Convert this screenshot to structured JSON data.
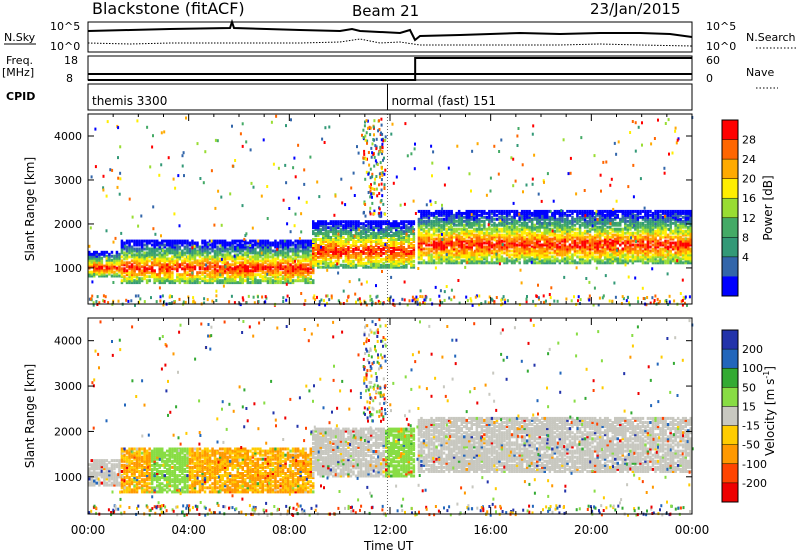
{
  "header": {
    "station": "Blackstone (fitACF)",
    "beam": "Beam 21",
    "date": "23/Jan/2015"
  },
  "params_panel": {
    "nsky_label": "N.Sky",
    "nsearch_label": "N.Search",
    "noise_ticks": [
      "10^5",
      "10^0"
    ],
    "freq_label": "Freq.",
    "freq_unit": "[MHz]",
    "freq_ticks": [
      "18",
      "8"
    ],
    "nave_label": "Nave",
    "nave_ticks": [
      "60",
      "0"
    ],
    "cpid_label": "CPID",
    "cpid_segments": [
      {
        "label": "themis 3300",
        "start_hour": 0,
        "end_hour": 11.9
      },
      {
        "label": "normal (fast) 151",
        "start_hour": 11.9,
        "end_hour": 24
      }
    ],
    "freq_mhz": [
      {
        "start_hour": 0,
        "end_hour": 24,
        "value": 10.5
      }
    ],
    "nave": [
      {
        "start_hour": 0,
        "end_hour": 13.0,
        "value": 0
      },
      {
        "start_hour": 13.0,
        "end_hour": 24,
        "value": 55
      }
    ]
  },
  "power_panel": {
    "ylabel": "Slant Range [km]",
    "colorbar_label": "Power [dB]",
    "colorbar_ticks": [
      "28",
      "24",
      "20",
      "16",
      "12",
      "8",
      "4"
    ],
    "colors": [
      "#ff0000",
      "#ff6600",
      "#ffaa00",
      "#ffee00",
      "#99dd33",
      "#44aa66",
      "#339977",
      "#3366aa",
      "#0000ff"
    ]
  },
  "velocity_panel": {
    "ylabel": "Slant Range [km]",
    "colorbar_label": "Velocity [m s^-1]",
    "colorbar_ticks": [
      "200",
      "100",
      "50",
      "15",
      "-15",
      "-50",
      "-100",
      "-200"
    ],
    "colors": [
      "#2233aa",
      "#2266bb",
      "#33aa33",
      "#88dd44",
      "#c8c8c0",
      "#ffcc00",
      "#ff9900",
      "#ff4400",
      "#ee0000"
    ]
  },
  "axes": {
    "xlabel": "Time UT",
    "x_ticks": [
      "00:00",
      "04:00",
      "08:00",
      "12:00",
      "16:00",
      "20:00",
      "00:00"
    ],
    "y_ticks": [
      "4000",
      "3000",
      "2000",
      "1000"
    ]
  },
  "chart_data": {
    "type": "heatmap",
    "x_range_hours": [
      0,
      24
    ],
    "y_range_km": [
      180,
      4500
    ],
    "bands": [
      {
        "name": "band-a",
        "t0": 0.0,
        "t1": 1.3,
        "r0": 850,
        "r1": 1400
      },
      {
        "name": "band-b",
        "t0": 1.3,
        "t1": 8.9,
        "r0": 700,
        "r1": 1650
      },
      {
        "name": "band-c",
        "t0": 8.9,
        "t1": 12.9,
        "r0": 1050,
        "r1": 2100
      },
      {
        "name": "band-d",
        "t0": 13.1,
        "t1": 24.0,
        "r0": 1150,
        "r1": 2350
      }
    ]
  }
}
